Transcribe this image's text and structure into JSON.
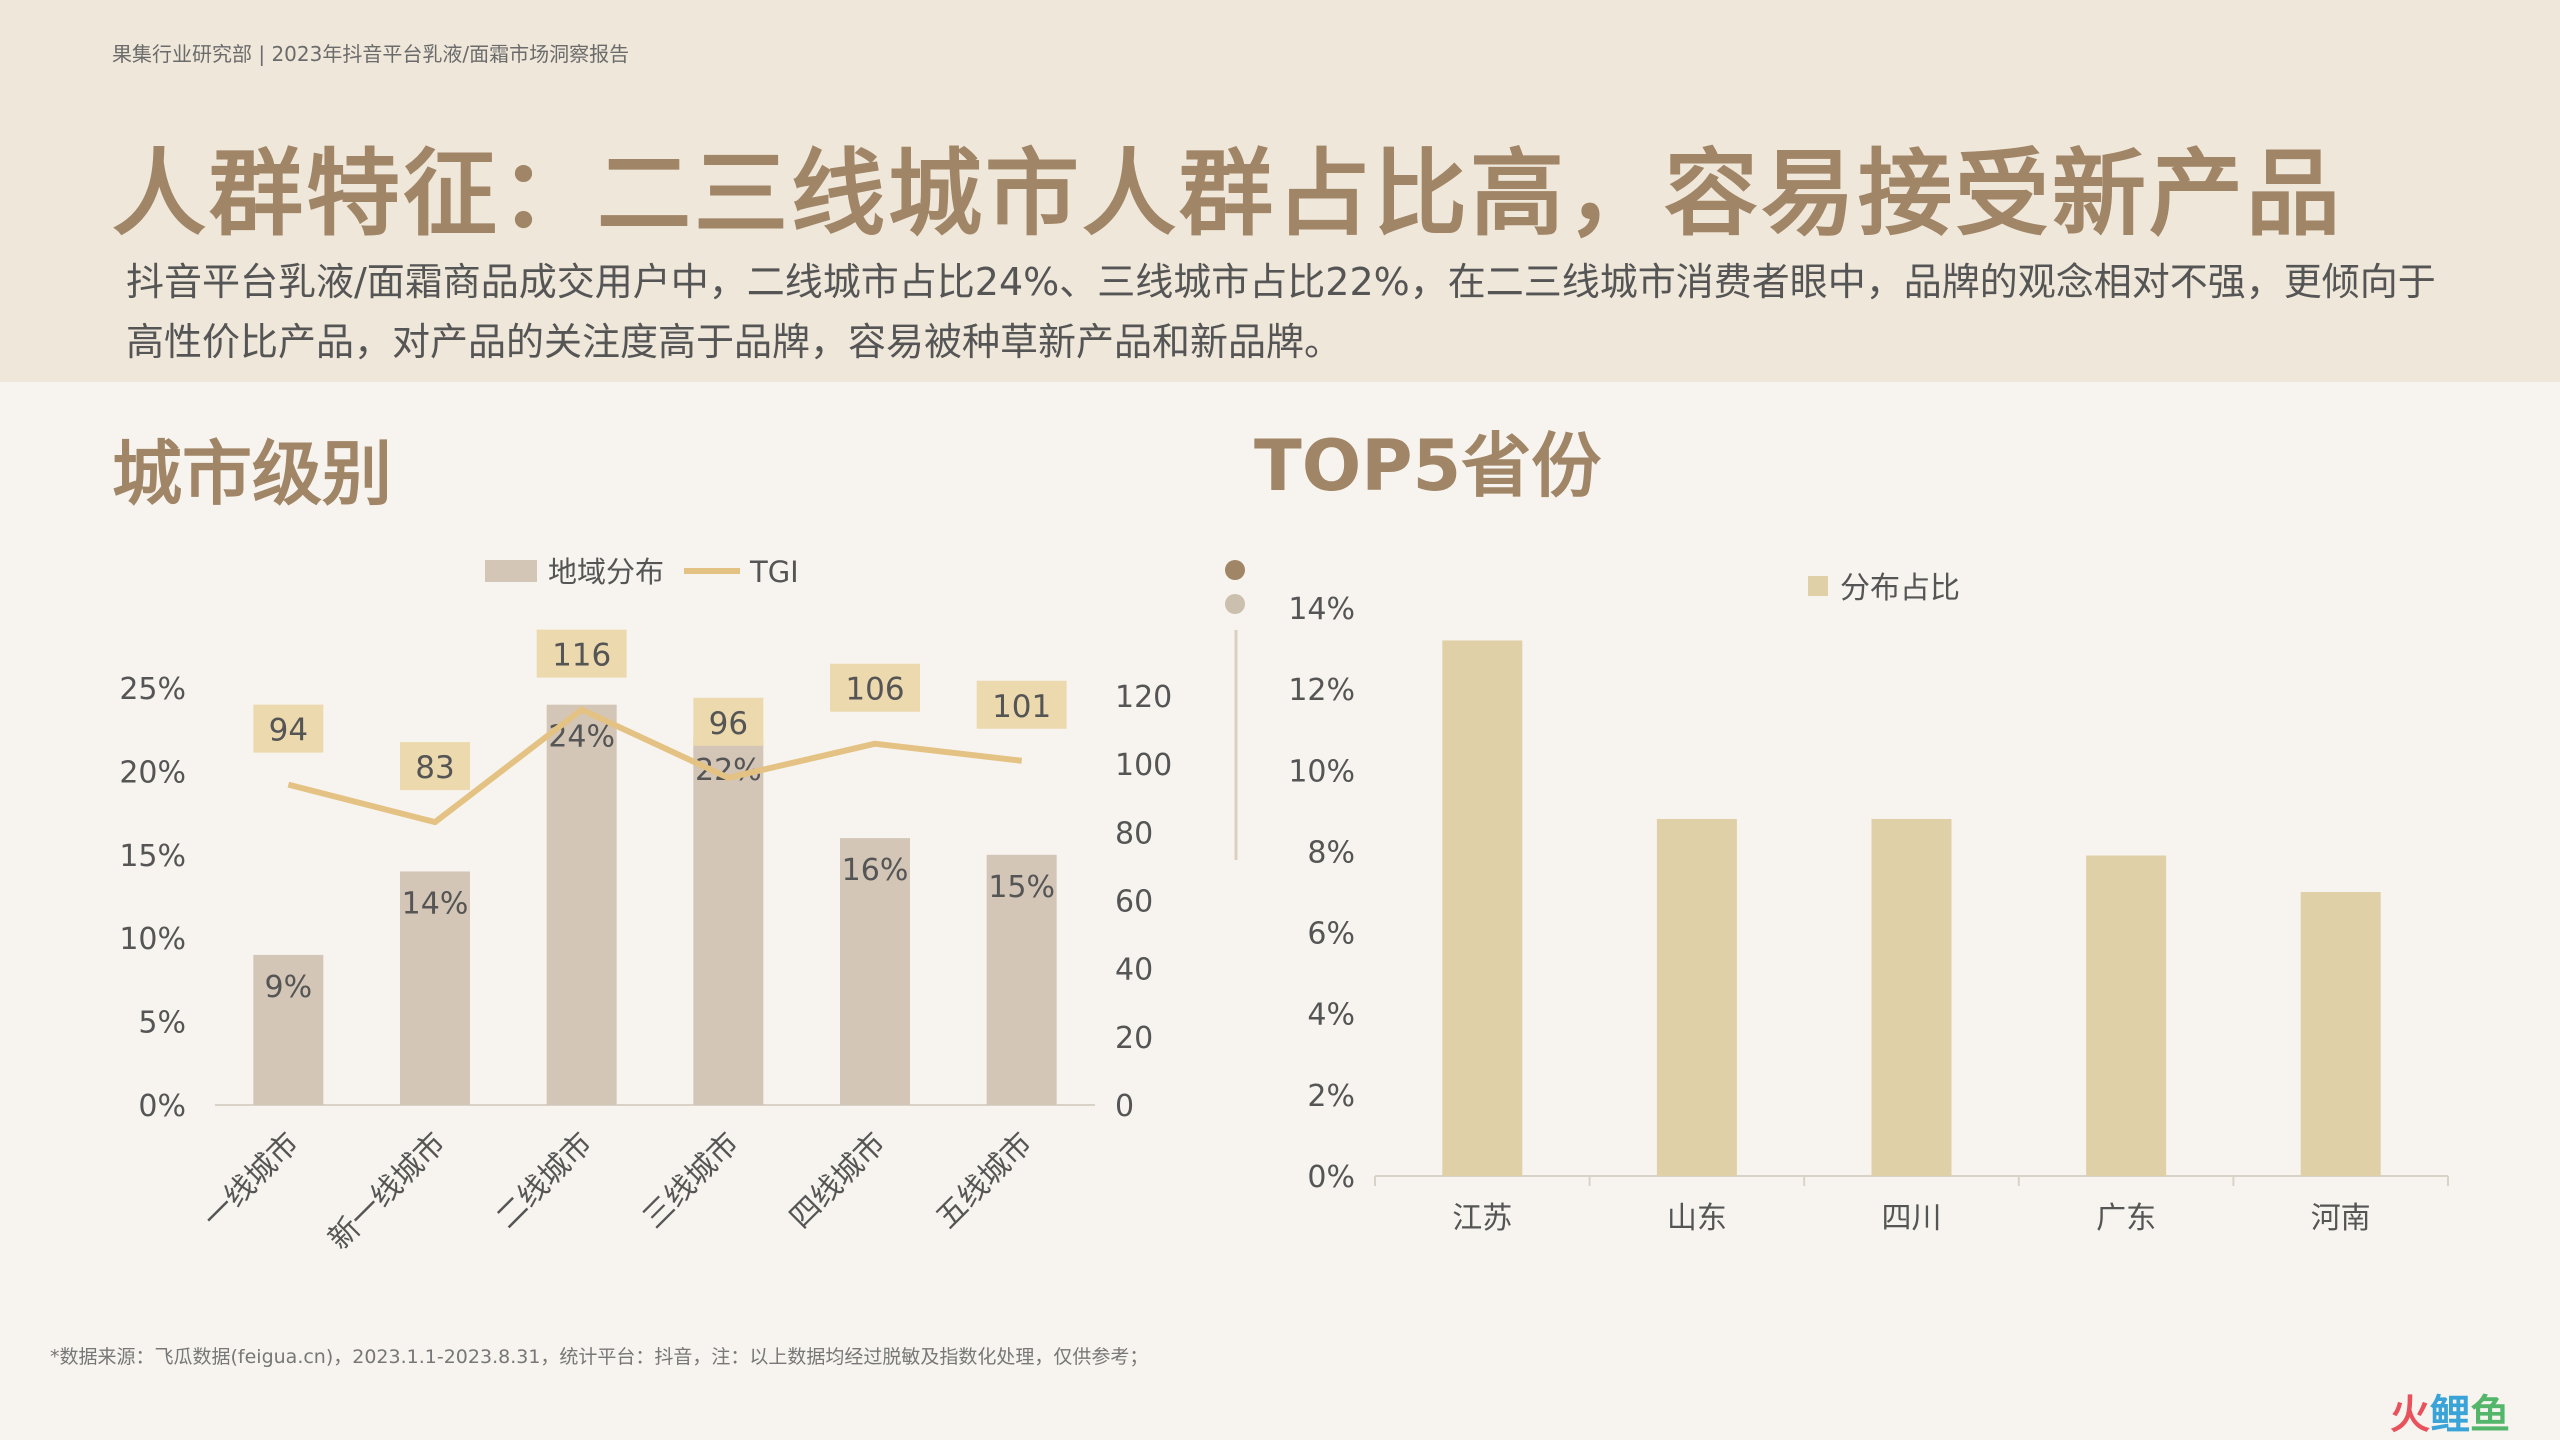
{
  "header": {
    "breadcrumb": "果集行业研究部 | 2023年抖音平台乳液/面霜市场洞察报告",
    "title": "人群特征：二三线城市人群占比高，容易接受新产品",
    "summary": "抖音平台乳液/面霜商品成交用户中，二线城市占比24%、三线城市占比22%，在二三线城市消费者眼中，品牌的观念相对不强，更倾向于高性价比产品，对产品的关注度高于品牌，容易被种草新产品和新品牌。"
  },
  "sections": {
    "left_title": "城市级别",
    "right_title": "TOP5省份"
  },
  "footnote": "*数据来源：飞瓜数据(feigua.cn)，2023.1.1-2023.8.31，统计平台：抖音，注：以上数据均经过脱敏及指数化处理，仅供参考；",
  "watermark": {
    "part1": "火",
    "part2": "鲤",
    "part3": "鱼"
  },
  "colors": {
    "bar_left": "#d3c6b7",
    "line_tgi": "#e4c283",
    "bar_right": "#e0d0a8",
    "tgi_label_bg": "#ecd9ae",
    "title": "#a08566"
  },
  "chart_data": [
    {
      "type": "bar+line",
      "categories": [
        "一线城市",
        "新一线城市",
        "二线城市",
        "三线城市",
        "四线城市",
        "五线城市"
      ],
      "series": [
        {
          "name": "地域分布",
          "type": "bar",
          "axis": "left",
          "values": [
            9,
            14,
            24,
            22,
            16,
            15
          ],
          "labels": [
            "9%",
            "14%",
            "24%",
            "22%",
            "16%",
            "15%"
          ]
        },
        {
          "name": "TGI",
          "type": "line",
          "axis": "right",
          "values": [
            94,
            83,
            116,
            96,
            106,
            101
          ],
          "labels": [
            "94",
            "83",
            "116",
            "96",
            "106",
            "101"
          ]
        }
      ],
      "y_left": {
        "ticks": [
          "0%",
          "5%",
          "10%",
          "15%",
          "20%",
          "25%"
        ],
        "range": [
          0,
          25
        ]
      },
      "y_right": {
        "ticks": [
          "0",
          "20",
          "40",
          "60",
          "80",
          "100",
          "120"
        ],
        "range": [
          0,
          120
        ]
      },
      "legend": "top-center",
      "grid": false
    },
    {
      "type": "bar",
      "categories": [
        "江苏",
        "山东",
        "四川",
        "广东",
        "河南"
      ],
      "series": [
        {
          "name": "分布占比",
          "values": [
            13.2,
            8.8,
            8.8,
            7.9,
            7.0
          ]
        }
      ],
      "y_axis": {
        "ticks": [
          "0%",
          "2%",
          "4%",
          "6%",
          "8%",
          "10%",
          "12%",
          "14%"
        ],
        "range": [
          0,
          14
        ]
      },
      "legend": "top-center",
      "grid": false
    }
  ]
}
